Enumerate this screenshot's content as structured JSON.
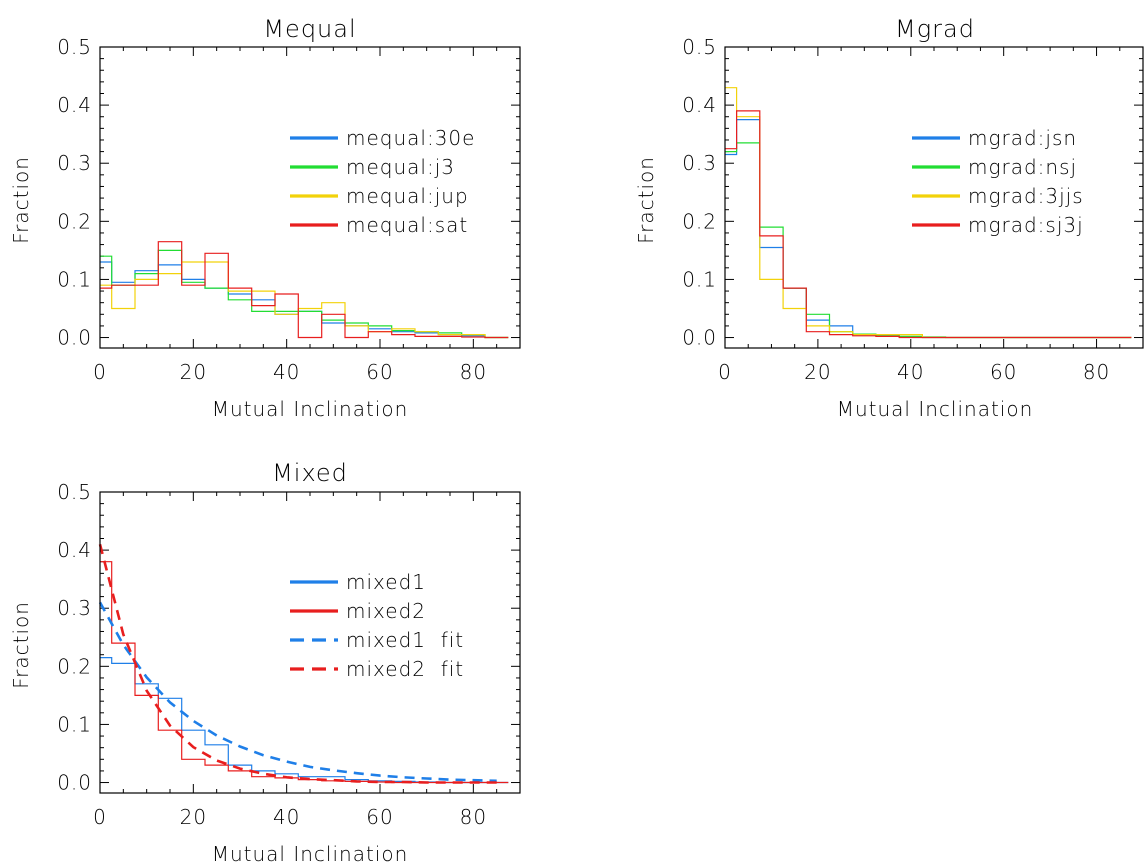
{
  "colors": {
    "blue": "#1f7fe8",
    "green": "#22dd33",
    "yellow": "#f2d20a",
    "red": "#e81e1e"
  },
  "chart_data": [
    {
      "type": "line",
      "style": "histogram",
      "title": "Mequal",
      "xlabel": "Mutual Inclination",
      "ylabel": "Fraction",
      "xlim": [
        0,
        90
      ],
      "ylim": [
        0,
        0.5
      ],
      "xticks": [
        "0",
        "20",
        "40",
        "60",
        "80"
      ],
      "yticks": [
        "0.0",
        "0.1",
        "0.2",
        "0.3",
        "0.4",
        "0.5"
      ],
      "legend_position": "center-right",
      "bin_edges": [
        0,
        2.5,
        7.5,
        12.5,
        17.5,
        22.5,
        27.5,
        32.5,
        37.5,
        42.5,
        47.5,
        52.5,
        57.5,
        62.5,
        67.5,
        72.5,
        77.5,
        82.5,
        87.5
      ],
      "series": [
        {
          "name": "mequal:30e",
          "color": "blue",
          "dash": false,
          "values": [
            0.13,
            0.095,
            0.115,
            0.125,
            0.1,
            0.085,
            0.075,
            0.065,
            0.04,
            0.045,
            0.025,
            0.02,
            0.015,
            0.01,
            0.008,
            0.005,
            0.003,
            0.0
          ]
        },
        {
          "name": "mequal:j3",
          "color": "green",
          "dash": false,
          "values": [
            0.14,
            0.09,
            0.11,
            0.15,
            0.095,
            0.085,
            0.065,
            0.045,
            0.045,
            0.045,
            0.03,
            0.025,
            0.02,
            0.012,
            0.01,
            0.008,
            0.005,
            0.0
          ]
        },
        {
          "name": "mequal:jup",
          "color": "yellow",
          "dash": false,
          "values": [
            0.09,
            0.05,
            0.1,
            0.11,
            0.13,
            0.13,
            0.08,
            0.08,
            0.04,
            0.05,
            0.06,
            0.02,
            0.01,
            0.015,
            0.01,
            0.005,
            0.005,
            0.0
          ]
        },
        {
          "name": "mequal:sat",
          "color": "red",
          "dash": false,
          "values": [
            0.085,
            0.09,
            0.09,
            0.165,
            0.09,
            0.145,
            0.085,
            0.055,
            0.075,
            0.0,
            0.04,
            0.0,
            0.01,
            0.005,
            0.002,
            0.002,
            0.001,
            0.0
          ]
        }
      ]
    },
    {
      "type": "line",
      "style": "histogram",
      "title": "Mgrad",
      "xlabel": "Mutual Inclination",
      "ylabel": "Fraction",
      "xlim": [
        0,
        90
      ],
      "ylim": [
        0,
        0.5
      ],
      "xticks": [
        "0",
        "20",
        "40",
        "60",
        "80"
      ],
      "yticks": [
        "0.0",
        "0.1",
        "0.2",
        "0.3",
        "0.4",
        "0.5"
      ],
      "legend_position": "center-right",
      "bin_edges": [
        0,
        2.5,
        7.5,
        12.5,
        17.5,
        22.5,
        27.5,
        32.5,
        37.5,
        42.5,
        47.5,
        52.5,
        57.5,
        62.5,
        67.5,
        72.5,
        77.5,
        82.5,
        87.5
      ],
      "series": [
        {
          "name": "mgrad:jsn",
          "color": "blue",
          "dash": false,
          "values": [
            0.315,
            0.375,
            0.155,
            0.085,
            0.03,
            0.02,
            0.005,
            0.003,
            0.001,
            0.0,
            0.0,
            0.0,
            0.0,
            0.0,
            0.0,
            0.0,
            0.0,
            0.0
          ]
        },
        {
          "name": "mgrad:nsj",
          "color": "green",
          "dash": false,
          "values": [
            0.32,
            0.335,
            0.19,
            0.085,
            0.04,
            0.01,
            0.006,
            0.004,
            0.002,
            0.001,
            0.0,
            0.0,
            0.0,
            0.0,
            0.0,
            0.0,
            0.0,
            0.0
          ]
        },
        {
          "name": "mgrad:3jjs",
          "color": "yellow",
          "dash": false,
          "values": [
            0.43,
            0.38,
            0.1,
            0.05,
            0.02,
            0.01,
            0.005,
            0.005,
            0.005,
            0.0,
            0.0,
            0.0,
            0.0,
            0.0,
            0.0,
            0.0,
            0.0,
            0.0
          ]
        },
        {
          "name": "mgrad:sj3j",
          "color": "red",
          "dash": false,
          "values": [
            0.325,
            0.39,
            0.175,
            0.085,
            0.01,
            0.005,
            0.003,
            0.002,
            0.0,
            0.0,
            0.0,
            0.0,
            0.0,
            0.0,
            0.0,
            0.0,
            0.0,
            0.0
          ]
        }
      ]
    },
    {
      "type": "line",
      "style": "histogram",
      "title": "Mixed",
      "xlabel": "Mutual Inclination",
      "ylabel": "Fraction",
      "xlim": [
        0,
        90
      ],
      "ylim": [
        0,
        0.5
      ],
      "xticks": [
        "0",
        "20",
        "40",
        "60",
        "80"
      ],
      "yticks": [
        "0.0",
        "0.1",
        "0.2",
        "0.3",
        "0.4",
        "0.5"
      ],
      "legend_position": "center-right",
      "bin_edges": [
        0,
        2.5,
        7.5,
        12.5,
        17.5,
        22.5,
        27.5,
        32.5,
        37.5,
        42.5,
        47.5,
        52.5,
        57.5,
        62.5,
        67.5,
        72.5,
        77.5,
        82.5,
        87.5
      ],
      "series": [
        {
          "name": "mixed1",
          "color": "blue",
          "dash": false,
          "values": [
            0.215,
            0.205,
            0.17,
            0.145,
            0.09,
            0.065,
            0.03,
            0.02,
            0.015,
            0.01,
            0.01,
            0.005,
            0.003,
            0.002,
            0.001,
            0.0,
            0.0,
            0.0
          ]
        },
        {
          "name": "mixed2",
          "color": "red",
          "dash": false,
          "values": [
            0.38,
            0.24,
            0.15,
            0.09,
            0.04,
            0.03,
            0.02,
            0.01,
            0.008,
            0.005,
            0.003,
            0.002,
            0.001,
            0.0,
            0.0,
            0.0,
            0.0,
            0.0
          ]
        }
      ],
      "fits": [
        {
          "name": "mixed1  fit",
          "color": "blue",
          "dash": true,
          "x": [
            0,
            5,
            10,
            15,
            20,
            25,
            30,
            35,
            40,
            45,
            50,
            55,
            60,
            65,
            70,
            75,
            80,
            85
          ],
          "y": [
            0.31,
            0.237,
            0.181,
            0.138,
            0.106,
            0.081,
            0.062,
            0.047,
            0.036,
            0.027,
            0.021,
            0.016,
            0.012,
            0.009,
            0.007,
            0.005,
            0.004,
            0.003
          ]
        },
        {
          "name": "mixed2  fit",
          "color": "red",
          "dash": true,
          "x": [
            0,
            5,
            10,
            15,
            20,
            25,
            30,
            35,
            40,
            45,
            50,
            55,
            60,
            65,
            70,
            75,
            80,
            85
          ],
          "y": [
            0.41,
            0.255,
            0.158,
            0.098,
            0.061,
            0.038,
            0.024,
            0.015,
            0.009,
            0.006,
            0.004,
            0.002,
            0.001,
            0.001,
            0.0,
            0.0,
            0.0,
            0.0
          ]
        }
      ]
    }
  ]
}
